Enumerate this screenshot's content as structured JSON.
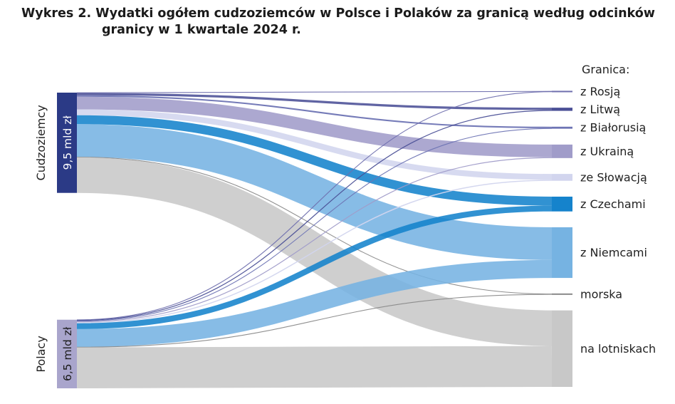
{
  "title_line1": "Wykres 2. Wydatki ogółem cudzoziemców w Polsce i Polaków za granicą według odcinków",
  "title_line2": "granicy w 1 kwartale 2024 r.",
  "chart_data": {
    "type": "sankey",
    "title": "Wykres 2. Wydatki ogółem cudzoziemców w Polsce i Polaków za granicą według odcinków granicy w 1 kwartale 2024 r.",
    "legend_title": "Granica:",
    "sources": [
      {
        "name": "Cudzoziemcy",
        "value_label": "9,5 mld zł",
        "value": 9.5,
        "color": "#2b3a86"
      },
      {
        "name": "Polacy",
        "value_label": "6,5 mld zł",
        "value": 6.5,
        "color": "#a9a5cc"
      }
    ],
    "targets": [
      {
        "name": "z Rosją",
        "color": "#6f6fae"
      },
      {
        "name": "z Litwą",
        "color": "#4a4f96"
      },
      {
        "name": "z Białorusią",
        "color": "#6e74b4"
      },
      {
        "name": "z Ukrainą",
        "color": "#a09cc9"
      },
      {
        "name": "ze Słowacją",
        "color": "#d2d5ee"
      },
      {
        "name": "z Czechami",
        "color": "#1583cc"
      },
      {
        "name": "z Niemcami",
        "color": "#76b3e2"
      },
      {
        "name": "morska",
        "color": "#8a8a8a"
      },
      {
        "name": "na lotniskach",
        "color": "#c8c8c8"
      }
    ],
    "unit": "mld zł",
    "flows": [
      {
        "source": "Cudzoziemcy",
        "target": "z Rosją",
        "value": 0.03
      },
      {
        "source": "Cudzoziemcy",
        "target": "z Litwą",
        "value": 0.22
      },
      {
        "source": "Cudzoziemcy",
        "target": "z Białorusią",
        "value": 0.14
      },
      {
        "source": "Cudzoziemcy",
        "target": "z Ukrainą",
        "value": 1.2
      },
      {
        "source": "Cudzoziemcy",
        "target": "ze Słowacją",
        "value": 0.55
      },
      {
        "source": "Cudzoziemcy",
        "target": "z Czechami",
        "value": 0.85
      },
      {
        "source": "Cudzoziemcy",
        "target": "z Niemcami",
        "value": 3.1
      },
      {
        "source": "Cudzoziemcy",
        "target": "morska",
        "value": 0.04
      },
      {
        "source": "Cudzoziemcy",
        "target": "na lotniskach",
        "value": 3.37
      },
      {
        "source": "Polacy",
        "target": "z Rosją",
        "value": 0.03
      },
      {
        "source": "Polacy",
        "target": "z Litwą",
        "value": 0.08
      },
      {
        "source": "Polacy",
        "target": "z Białorusią",
        "value": 0.05
      },
      {
        "source": "Polacy",
        "target": "z Ukrainą",
        "value": 0.08
      },
      {
        "source": "Polacy",
        "target": "ze Słowacją",
        "value": 0.1
      },
      {
        "source": "Polacy",
        "target": "z Czechami",
        "value": 0.55
      },
      {
        "source": "Polacy",
        "target": "z Niemcami",
        "value": 1.7
      },
      {
        "source": "Polacy",
        "target": "morska",
        "value": 0.03
      },
      {
        "source": "Polacy",
        "target": "na lotniskach",
        "value": 3.88
      }
    ]
  }
}
